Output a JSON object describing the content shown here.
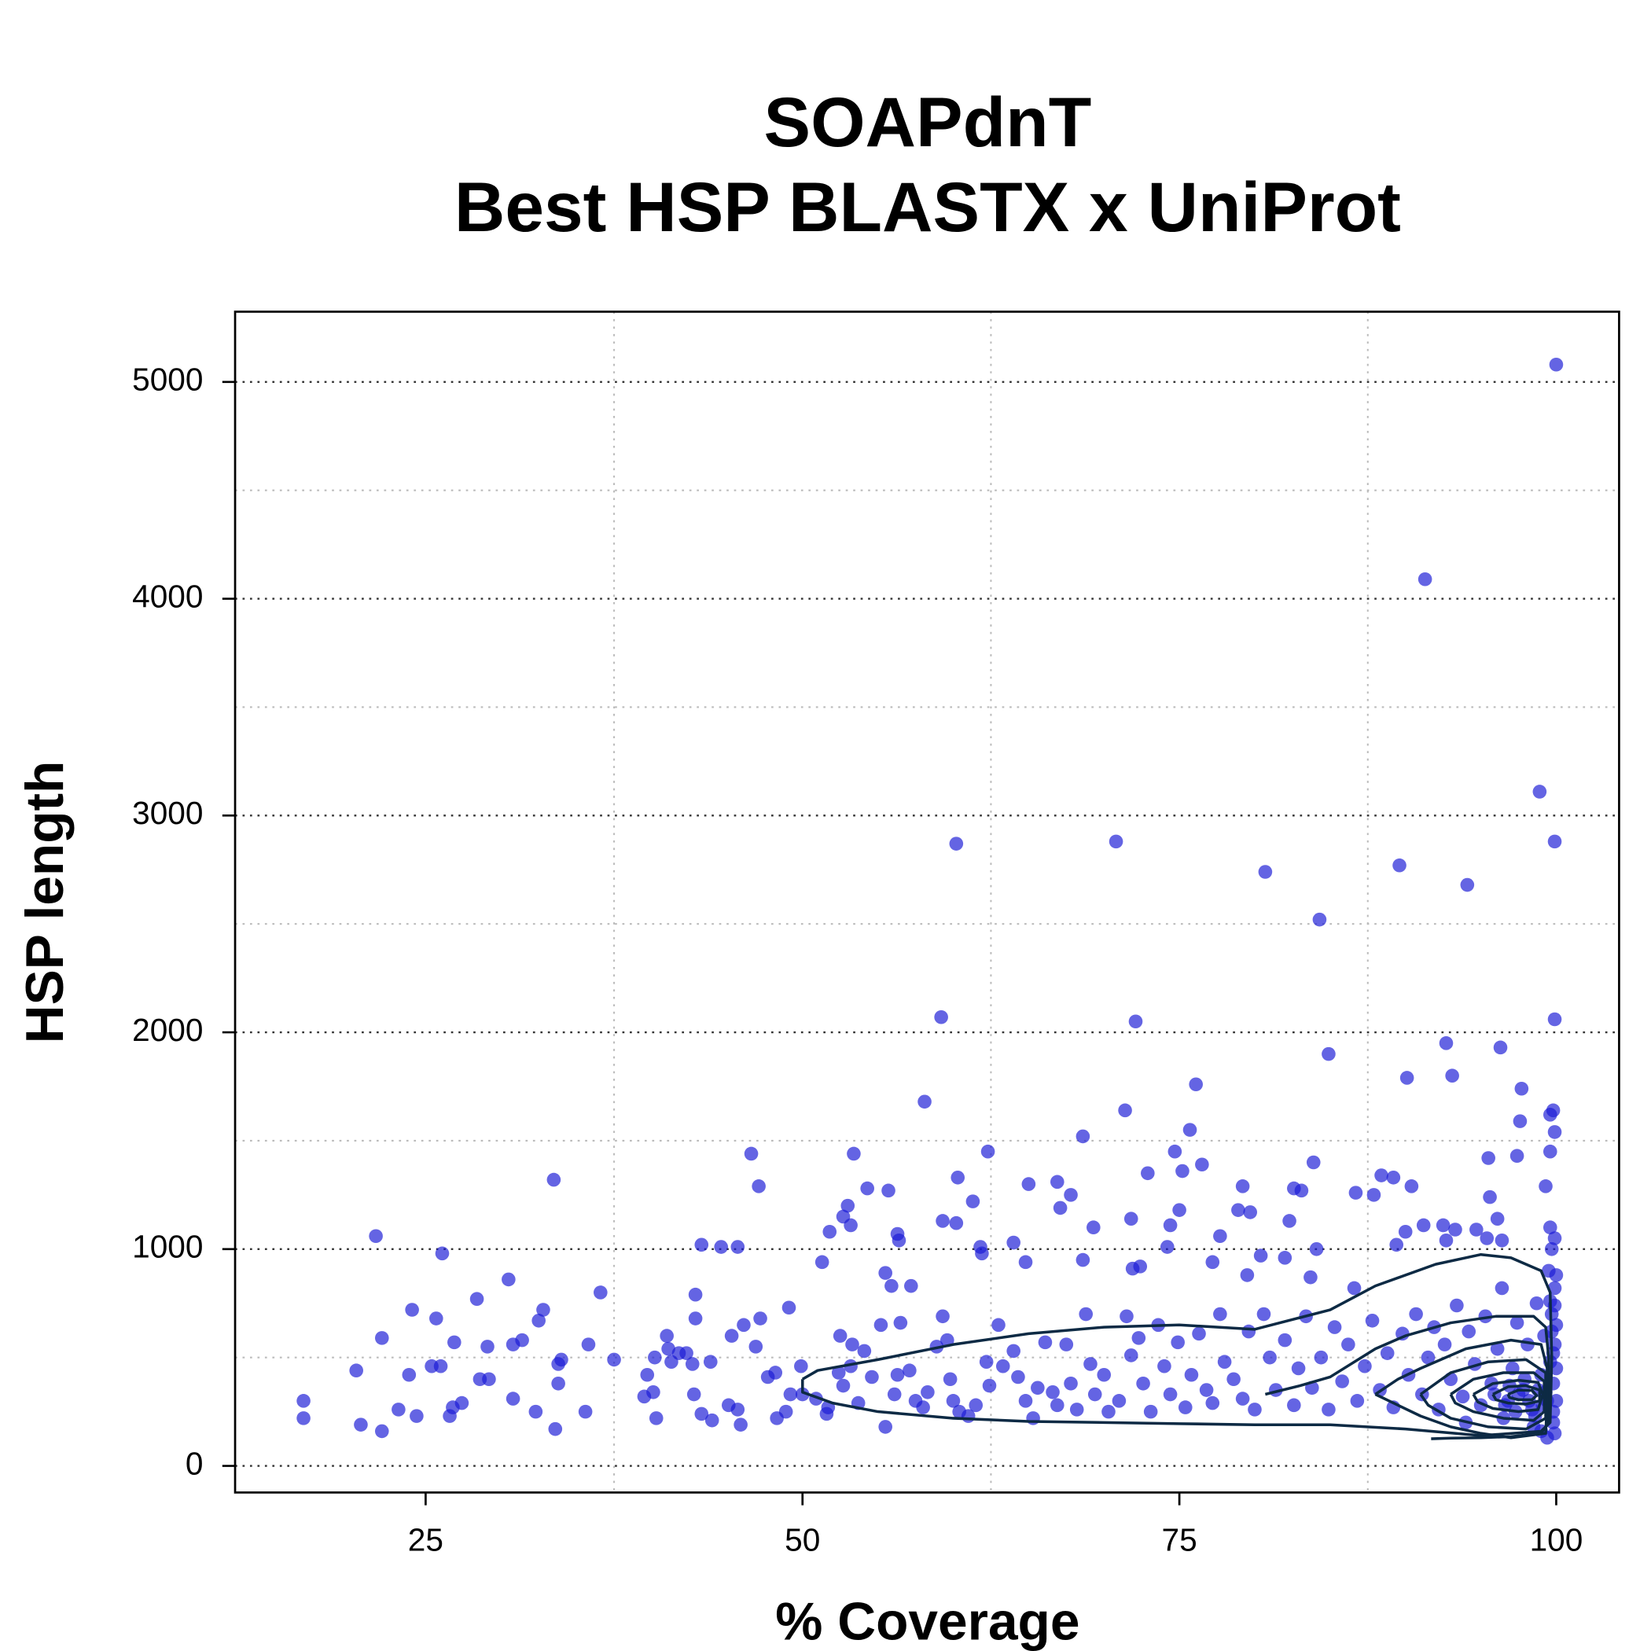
{
  "chart_data": {
    "type": "scatter",
    "title": [
      "SOAPdnT",
      "Best HSP BLASTX x UniProt"
    ],
    "xlabel": "% Coverage",
    "ylabel": "HSP length",
    "xlim": [
      12.36,
      104.17
    ],
    "ylim": [
      -122.7,
      5324
    ],
    "xticks": [
      25,
      50,
      75,
      100
    ],
    "yticks": [
      0,
      1000,
      2000,
      3000,
      4000,
      5000
    ],
    "xminor": [
      37.5,
      62.5,
      87.5
    ],
    "yminor": [
      500,
      1500,
      2500,
      3500,
      4500
    ],
    "grid": true,
    "color": "#1a1ad6",
    "contour_color": "#0d2a44",
    "x": [
      100,
      91.3,
      98.9,
      99.9,
      60.2,
      70.8,
      80.7,
      89.6,
      94.1,
      84.3,
      59.2,
      72.1,
      99.9,
      92.7,
      96.3,
      84.9,
      93.1,
      90.1,
      76.1,
      97.7,
      58.1,
      71.4,
      99.8,
      99.6,
      97.6,
      75.7,
      99.9,
      68.6,
      53.4,
      46.6,
      62.3,
      74.7,
      97.4,
      99.6,
      95.5,
      76.5,
      83.9,
      33.5,
      47.1,
      60.3,
      72.9,
      75.2,
      79.2,
      89.2,
      90.4,
      88.4,
      99.3,
      65.0,
      66.9,
      54.3,
      55.7,
      82.6,
      83.1,
      86.7,
      87.9,
      95.6,
      61.3,
      67.8,
      53.0,
      52.7,
      53.2,
      51.8,
      59.3,
      60.2,
      21.7,
      26.1,
      43.3,
      44.6,
      45.7,
      56.3,
      56.4,
      61.8,
      61.9,
      64.0,
      64.8,
      67.1,
      69.3,
      71.8,
      74.2,
      75.0,
      74.4,
      77.7,
      78.9,
      79.7,
      82.3,
      91.2,
      92.5,
      93.3,
      94.7,
      96.1,
      90.0,
      92.7,
      95.4,
      96.4,
      89.4,
      51.3,
      55.5,
      55.9,
      57.2,
      68.6,
      72.4,
      71.9,
      77.2,
      79.5,
      80.4,
      82.0,
      83.7,
      86.6,
      84.1,
      42.9,
      36.6,
      30.5,
      28.4,
      24.1,
      25.7,
      32.8,
      32.5,
      22.1,
      26.9,
      29.1,
      30.8,
      31.4,
      35.8,
      37.5,
      34.0,
      33.8,
      25.4,
      26.0,
      20.4,
      23.9,
      28.6,
      29.2,
      30.8,
      27.4,
      26.8,
      26.6,
      24.4,
      23.2,
      16.9,
      16.9,
      20.7,
      22.1,
      32.3,
      33.8,
      33.6,
      35.6,
      39.5,
      40.1,
      40.3,
      39.7,
      40.2,
      41.0,
      41.3,
      41.1,
      41.8,
      42.3,
      42.9,
      42.7,
      42.8,
      43.3,
      44.0,
      43.9,
      45.1,
      45.3,
      45.7,
      45.9,
      46.1,
      46.9,
      47.2,
      47.7,
      48.2,
      48.3,
      48.9,
      49.2,
      49.1,
      49.9,
      50.0,
      50.9,
      51.6,
      51.7,
      52.4,
      52.5,
      52.7,
      53.2,
      53.3,
      53.7,
      54.1,
      54.6,
      55.2,
      55.5,
      56.1,
      56.3,
      56.5,
      57.1,
      57.5,
      58.0,
      58.3,
      58.9,
      59.3,
      59.6,
      59.8,
      60.0,
      60.4,
      61.0,
      61.5,
      62.2,
      62.4,
      63.0,
      63.3,
      64.0,
      64.3,
      64.8,
      65.3,
      65.6,
      66.1,
      66.6,
      66.9,
      67.5,
      67.8,
      68.2,
      68.8,
      69.1,
      69.4,
      70.0,
      70.3,
      71.0,
      71.5,
      71.8,
      72.3,
      72.6,
      73.1,
      73.6,
      74.0,
      74.4,
      74.9,
      75.4,
      75.8,
      76.3,
      76.8,
      77.2,
      77.7,
      78.0,
      78.6,
      79.2,
      79.6,
      80.0,
      80.6,
      81.0,
      81.4,
      82.0,
      82.6,
      82.9,
      83.4,
      83.8,
      84.4,
      84.9,
      85.3,
      85.8,
      86.2,
      86.8,
      87.3,
      87.8,
      88.3,
      88.8,
      89.2,
      89.8,
      90.2,
      90.7,
      91.1,
      91.5,
      91.9,
      92.2,
      92.6,
      93.0,
      93.4,
      93.8,
      94.2,
      94.6,
      95.0,
      95.3,
      95.7,
      96.1,
      96.4,
      96.8,
      97.1,
      97.4,
      97.8,
      98.1,
      98.4,
      98.7,
      99.0,
      99.2,
      99.4,
      99.5,
      99.6,
      99.7,
      99.7,
      99.8,
      99.8,
      99.9,
      99.9,
      99.9,
      100,
      100,
      100,
      99.6,
      99.4,
      98.5,
      96.5,
      94.0,
      99.0,
      97.5,
      98.2,
      98.8,
      96.9,
      97.9,
      99.1,
      98.6,
      99.3,
      95.9,
      96.6,
      97.3,
      99.8,
      99.9,
      99.7,
      99.9,
      100,
      99.6,
      99.8
    ],
    "values": [
      5080,
      4090,
      3110,
      2880,
      2870,
      2880,
      2740,
      2770,
      2680,
      2520,
      2070,
      2050,
      2060,
      1950,
      1930,
      1900,
      1800,
      1790,
      1760,
      1740,
      1680,
      1640,
      1640,
      1620,
      1590,
      1550,
      1540,
      1520,
      1440,
      1440,
      1450,
      1450,
      1430,
      1450,
      1420,
      1390,
      1400,
      1320,
      1290,
      1330,
      1350,
      1360,
      1290,
      1330,
      1290,
      1340,
      1290,
      1300,
      1310,
      1280,
      1270,
      1280,
      1270,
      1260,
      1250,
      1240,
      1220,
      1250,
      1200,
      1150,
      1110,
      1080,
      1130,
      1120,
      1060,
      980,
      1020,
      1010,
      1010,
      1070,
      1040,
      1010,
      980,
      1030,
      940,
      1190,
      1100,
      1140,
      1010,
      1180,
      1110,
      1060,
      1180,
      1170,
      1130,
      1110,
      1110,
      1090,
      1090,
      1140,
      1080,
      1040,
      1050,
      1040,
      1020,
      940,
      890,
      830,
      830,
      950,
      920,
      910,
      940,
      880,
      970,
      960,
      870,
      820,
      1000,
      790,
      800,
      860,
      770,
      720,
      680,
      720,
      670,
      590,
      570,
      550,
      560,
      580,
      560,
      490,
      490,
      470,
      460,
      460,
      440,
      420,
      400,
      400,
      310,
      290,
      270,
      230,
      230,
      260,
      300,
      220,
      190,
      160,
      250,
      380,
      170,
      250,
      320,
      340,
      220,
      420,
      500,
      600,
      480,
      540,
      520,
      520,
      680,
      470,
      330,
      240,
      210,
      480,
      280,
      600,
      260,
      190,
      650,
      550,
      680,
      410,
      430,
      220,
      250,
      330,
      730,
      460,
      330,
      310,
      240,
      270,
      430,
      600,
      370,
      460,
      560,
      290,
      530,
      410,
      650,
      180,
      330,
      420,
      660,
      440,
      300,
      270,
      340,
      550,
      690,
      580,
      400,
      300,
      250,
      230,
      280,
      480,
      370,
      650,
      460,
      530,
      410,
      300,
      220,
      360,
      570,
      340,
      280,
      560,
      380,
      260,
      700,
      470,
      330,
      420,
      250,
      300,
      690,
      510,
      590,
      380,
      250,
      650,
      460,
      330,
      570,
      270,
      420,
      610,
      350,
      290,
      700,
      480,
      400,
      310,
      620,
      260,
      700,
      500,
      350,
      580,
      280,
      450,
      690,
      360,
      500,
      260,
      640,
      390,
      560,
      300,
      460,
      670,
      350,
      520,
      270,
      610,
      420,
      700,
      330,
      500,
      640,
      260,
      560,
      400,
      740,
      320,
      620,
      470,
      280,
      690,
      380,
      540,
      820,
      300,
      450,
      660,
      350,
      560,
      260,
      750,
      420,
      600,
      300,
      900,
      480,
      1000,
      700,
      380,
      200,
      1050,
      560,
      820,
      650,
      300,
      450,
      1100,
      130,
      180,
      220,
      200,
      160,
      330,
      300,
      350,
      370,
      400,
      280,
      230,
      340,
      330,
      280,
      250,
      250,
      150,
      620,
      740,
      880,
      760,
      520
    ],
    "contours": [
      {
        "x": [
          50,
          51,
          55,
          60,
          65,
          70,
          75,
          80,
          85,
          88,
          92,
          95,
          97,
          99,
          99.6,
          99.7,
          99.6,
          99,
          95,
          90,
          85,
          80,
          75,
          70,
          65,
          60,
          55,
          52,
          50,
          50
        ],
        "y": [
          400,
          440,
          490,
          560,
          610,
          640,
          650,
          630,
          720,
          830,
          930,
          975,
          960,
          900,
          800,
          500,
          200,
          160,
          140,
          170,
          190,
          190,
          195,
          200,
          205,
          220,
          250,
          290,
          340,
          400
        ]
      },
      {
        "x": [
          80.7,
          83,
          85,
          88,
          90,
          93,
          96,
          98.5,
          99.3,
          99.5,
          99.5,
          99,
          97,
          95,
          93,
          91.7
        ],
        "y": [
          330,
          370,
          410,
          540,
          600,
          660,
          690,
          690,
          640,
          500,
          200,
          150,
          135,
          130,
          128,
          125
        ]
      },
      {
        "x": [
          88,
          89.5,
          91,
          94,
          97,
          99,
          99.4,
          99.4,
          99.3,
          97,
          95,
          93,
          91,
          89.5,
          88
        ],
        "y": [
          330,
          400,
          450,
          540,
          580,
          560,
          450,
          300,
          150,
          130,
          150,
          180,
          230,
          280,
          330
        ]
      },
      {
        "x": [
          91,
          93,
          95.5,
          98,
          99.3,
          99.3,
          98,
          95.5,
          93,
          91.5,
          91
        ],
        "y": [
          330,
          430,
          480,
          490,
          430,
          220,
          170,
          180,
          220,
          280,
          330
        ]
      },
      {
        "x": [
          93,
          94.5,
          96.5,
          98.5,
          99.2,
          99.2,
          98.5,
          96.5,
          94.5,
          93.3,
          93
        ],
        "y": [
          330,
          400,
          430,
          430,
          390,
          250,
          210,
          220,
          250,
          290,
          330
        ]
      },
      {
        "x": [
          94.5,
          95.8,
          97.5,
          98.8,
          99.1,
          98.8,
          97.5,
          95.8,
          94.8,
          94.5
        ],
        "y": [
          330,
          380,
          395,
          385,
          330,
          260,
          250,
          265,
          295,
          330
        ]
      },
      {
        "x": [
          95.8,
          96.8,
          98,
          98.9,
          98.9,
          98,
          96.8,
          96,
          95.8
        ],
        "y": [
          330,
          365,
          370,
          350,
          300,
          285,
          290,
          305,
          330
        ]
      },
      {
        "x": [
          96.8,
          97.5,
          98.4,
          98.7,
          98.4,
          97.5,
          96.9,
          96.8
        ],
        "y": [
          330,
          350,
          348,
          325,
          305,
          305,
          315,
          330
        ]
      }
    ]
  }
}
